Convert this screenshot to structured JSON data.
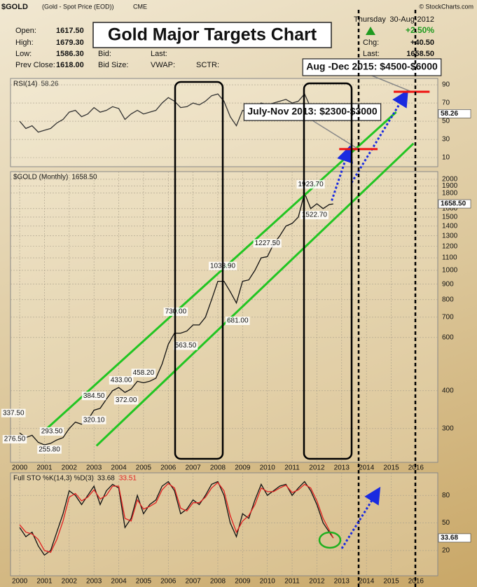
{
  "header": {
    "symbol": "$GOLD",
    "description": "(Gold - Spot Price (EOD))",
    "exchange": "CME",
    "credit": "© StockCharts.com",
    "title": "Gold Major Targets Chart",
    "open_label": "Open:",
    "open": "1617.50",
    "high_label": "High:",
    "high": "1679.30",
    "low_label": "Low:",
    "low": "1586.30",
    "prev_close_label": "Prev Close:",
    "prev_close": "1618.00",
    "bid_label": "Bid:",
    "bid_size_label": "Bid Size:",
    "last_label_left": "Last:",
    "vwap_label": "VWAP:",
    "sctr_label": "SCTR:",
    "weekday": "Thursday",
    "date": "30-Aug-2012",
    "change_pct": "+2.50%",
    "chg_label": "Chg:",
    "chg": "+40.50",
    "last_label": "Last:",
    "last": "1658.50"
  },
  "chart_data": [
    {
      "type": "line",
      "label": "RSI(14)",
      "xlim": [
        1999.63,
        2016.88
      ],
      "ylim": [
        0,
        97
      ],
      "yticks": [
        10,
        30,
        50,
        70,
        90
      ],
      "x": [
        2000,
        2000.25,
        2000.5,
        2000.75,
        2001,
        2001.25,
        2001.5,
        2001.75,
        2002,
        2002.25,
        2002.5,
        2002.75,
        2003,
        2003.25,
        2003.5,
        2003.75,
        2004,
        2004.25,
        2004.5,
        2004.75,
        2005,
        2005.25,
        2005.5,
        2005.75,
        2006,
        2006.25,
        2006.5,
        2006.75,
        2007,
        2007.25,
        2007.5,
        2007.75,
        2008,
        2008.25,
        2008.5,
        2008.75,
        2009,
        2009.25,
        2009.5,
        2009.75,
        2010,
        2010.25,
        2010.5,
        2010.75,
        2011,
        2011.25,
        2011.5,
        2011.75,
        2012,
        2012.25,
        2012.5,
        2012.66
      ],
      "series": [
        {
          "color": "#333333",
          "values": [
            50,
            42,
            45,
            38,
            40,
            42,
            48,
            52,
            60,
            62,
            55,
            58,
            65,
            60,
            62,
            66,
            64,
            52,
            58,
            62,
            58,
            60,
            62,
            70,
            76,
            72,
            65,
            66,
            70,
            68,
            72,
            78,
            80,
            72,
            55,
            45,
            62,
            60,
            66,
            70,
            68,
            70,
            72,
            74,
            70,
            72,
            80,
            65,
            62,
            52,
            55,
            58.26
          ]
        }
      ]
    },
    {
      "type": "line",
      "label": "$GOLD (Monthly)",
      "last_value_label": "1658.50",
      "log": true,
      "xlim": [
        1999.63,
        2016.88
      ],
      "ylim": [
        232,
        2120
      ],
      "yticks": [
        300,
        400,
        600,
        700,
        800,
        900,
        1000,
        1100,
        1200,
        1300,
        1400,
        1500,
        1600,
        1800,
        1900,
        2000
      ],
      "xticks": [
        2000,
        2001,
        2002,
        2003,
        2004,
        2005,
        2006,
        2007,
        2008,
        2009,
        2010,
        2011,
        2012,
        2013,
        2014,
        2015,
        2016
      ],
      "x": [
        2000,
        2000.25,
        2000.5,
        2000.75,
        2001,
        2001.25,
        2001.5,
        2001.75,
        2002,
        2002.25,
        2002.5,
        2002.75,
        2003,
        2003.25,
        2003.5,
        2003.75,
        2004,
        2004.25,
        2004.5,
        2004.75,
        2005,
        2005.25,
        2005.5,
        2005.75,
        2006,
        2006.25,
        2006.5,
        2006.75,
        2007,
        2007.25,
        2007.5,
        2007.75,
        2008,
        2008.25,
        2008.5,
        2008.75,
        2009,
        2009.25,
        2009.5,
        2009.75,
        2010,
        2010.25,
        2010.5,
        2010.75,
        2011,
        2011.25,
        2011.5,
        2011.75,
        2012,
        2012.25,
        2012.5,
        2012.66
      ],
      "series": [
        {
          "color": "#111111",
          "values": [
            290,
            280,
            285,
            270,
            265,
            268,
            275,
            280,
            300,
            315,
            310,
            320,
            345,
            350,
            375,
            400,
            410,
            395,
            405,
            430,
            425,
            430,
            440,
            490,
            570,
            620,
            620,
            630,
            660,
            660,
            700,
            800,
            920,
            920,
            850,
            780,
            920,
            930,
            1000,
            1100,
            1110,
            1220,
            1300,
            1400,
            1430,
            1500,
            1800,
            1600,
            1660,
            1600,
            1650,
            1658.5
          ]
        }
      ],
      "price_labels": {
        "x": [
          1999.75,
          1999.8,
          2001.2,
          2001.3,
          2003.0,
          2003.0,
          2004.1,
          2004.3,
          2005.0,
          2006.3,
          2006.7,
          2008.2,
          2008.8,
          2010.0,
          2011.75,
          2011.9
        ],
        "values": [
          337.5,
          276.5,
          255.8,
          293.5,
          320.1,
          384.5,
          433,
          372,
          458.2,
          730,
          563.5,
          1033.9,
          681,
          1227.5,
          1923.7,
          1522.7
        ],
        "value_labels": [
          "337.50",
          "276.50",
          "255.80",
          "293.50",
          "320.10",
          "384.50",
          "433.00",
          "372.00",
          "458.20",
          "730.00",
          "563.50",
          "1033.90",
          "681.00",
          "1227.50",
          "1923.70",
          "1522.70"
        ]
      },
      "trend_lines": [
        {
          "color": "#22c522",
          "x": [
            2001.1,
            2015.2
          ],
          "values": [
            300,
            3336
          ]
        },
        {
          "color": "#22c522",
          "x": [
            2003.1,
            2015.9
          ],
          "values": [
            263,
            2626
          ]
        }
      ],
      "projections": [
        {
          "color": "#1a2be0",
          "x": [
            2012.6,
            2013.3
          ],
          "values": [
            1700,
            2516
          ]
        },
        {
          "color": "#1a2be0",
          "x": [
            2013.4,
            2015.6
          ],
          "values": [
            1950,
            3850
          ]
        }
      ],
      "targets": [
        {
          "color": "#ee1111",
          "x": [
            2012.9,
            2014.45
          ],
          "value": 2516,
          "label": "July-Nov 2013: $2300-$3000"
        },
        {
          "color": "#ee1111",
          "x": [
            2015.1,
            2016.55
          ],
          "value": 3893,
          "label": "Aug -Dec 2015: $4500-$6000"
        }
      ]
    },
    {
      "type": "line",
      "label": "Full STO %K(14,3) %D(3)",
      "xlim": [
        1999.63,
        2016.88
      ],
      "ylim": [
        -7.5,
        104.5
      ],
      "yticks": [
        20,
        50,
        80
      ],
      "xticks": [
        2000,
        2001,
        2002,
        2003,
        2004,
        2005,
        2006,
        2007,
        2008,
        2009,
        2010,
        2011,
        2012,
        2013,
        2014,
        2015,
        2016
      ],
      "x": [
        2000,
        2000.25,
        2000.5,
        2000.75,
        2001,
        2001.25,
        2001.5,
        2001.75,
        2002,
        2002.25,
        2002.5,
        2002.75,
        2003,
        2003.25,
        2003.5,
        2003.75,
        2004,
        2004.25,
        2004.5,
        2004.75,
        2005,
        2005.25,
        2005.5,
        2005.75,
        2006,
        2006.25,
        2006.5,
        2006.75,
        2007,
        2007.25,
        2007.5,
        2007.75,
        2008,
        2008.25,
        2008.5,
        2008.75,
        2009,
        2009.25,
        2009.5,
        2009.75,
        2010,
        2010.25,
        2010.5,
        2010.75,
        2011,
        2011.25,
        2011.5,
        2011.75,
        2012,
        2012.25,
        2012.5,
        2012.66
      ],
      "series": [
        {
          "color": "#111111",
          "values": [
            45,
            35,
            40,
            25,
            15,
            20,
            40,
            60,
            85,
            80,
            70,
            80,
            90,
            70,
            85,
            92,
            88,
            45,
            55,
            80,
            60,
            70,
            75,
            90,
            95,
            85,
            60,
            65,
            75,
            70,
            80,
            92,
            95,
            80,
            50,
            35,
            60,
            55,
            75,
            92,
            80,
            85,
            90,
            92,
            80,
            88,
            95,
            85,
            70,
            50,
            40,
            33.68
          ]
        },
        {
          "color": "#e02020",
          "values": [
            48,
            40,
            38,
            32,
            20,
            18,
            32,
            52,
            78,
            82,
            74,
            78,
            86,
            76,
            80,
            90,
            90,
            55,
            52,
            75,
            65,
            68,
            72,
            86,
            93,
            88,
            66,
            63,
            72,
            72,
            78,
            88,
            94,
            85,
            58,
            40,
            52,
            58,
            70,
            88,
            84,
            84,
            88,
            91,
            83,
            86,
            92,
            88,
            74,
            55,
            42,
            33.51
          ]
        }
      ]
    }
  ]
}
